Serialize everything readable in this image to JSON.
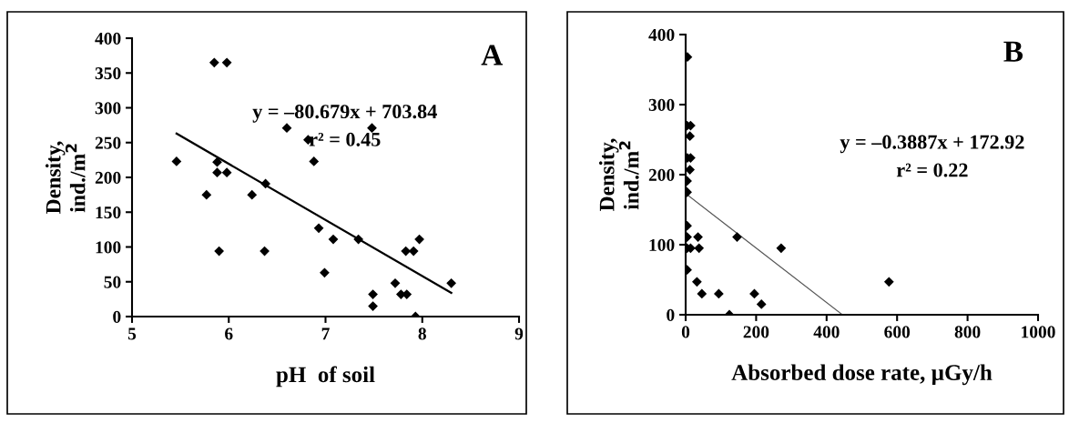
{
  "chart_data": [
    {
      "type": "scatter",
      "xlabel": "pH  of soil",
      "ylabel": "Density,\nind./m$^{2}$",
      "grid": false,
      "legend": false,
      "xlim": [
        5,
        9
      ],
      "ylim": [
        0,
        400
      ],
      "xticks": [
        5,
        6,
        7,
        8,
        9
      ],
      "yticks": [
        0,
        50,
        100,
        150,
        200,
        250,
        300,
        350,
        400
      ],
      "annotations": [
        "A",
        "y = –80.679x + 703.84",
        "r² = 0.45"
      ],
      "series": [
        {
          "color": "#000000",
          "marker": "diamond",
          "x": [
            5.46,
            5.85,
            5.98,
            5.88,
            5.88,
            5.98,
            5.77,
            5.9,
            6.24,
            6.38,
            6.37,
            6.6,
            6.82,
            6.88,
            6.93,
            6.99,
            7.08,
            7.34,
            7.48,
            7.49,
            7.49,
            7.72,
            7.78,
            7.84,
            7.83,
            7.91,
            7.97,
            7.93,
            8.3
          ],
          "values": [
            223,
            365,
            365,
            222,
            207,
            207,
            175,
            94,
            175,
            191,
            94,
            271,
            254,
            223,
            127,
            63,
            111,
            111,
            271,
            32,
            15,
            48,
            32,
            32,
            94,
            94,
            111,
            0,
            48
          ]
        },
        {
          "type": "line",
          "color": "#000000",
          "x": [
            5.46,
            8.3
          ],
          "values": [
            263,
            34
          ]
        }
      ]
    },
    {
      "type": "scatter",
      "xlabel": "Absorbed dose rate, µGy/h",
      "ylabel": "Density,\nind./m$^{2}$",
      "grid": false,
      "legend": false,
      "xlim": [
        0,
        1000
      ],
      "ylim": [
        0,
        400
      ],
      "xticks": [
        0,
        200,
        400,
        600,
        800,
        1000
      ],
      "yticks": [
        0,
        100,
        200,
        300,
        400
      ],
      "annotations": [
        "B",
        "y = –0.3887x + 172.92",
        "r² = 0.22"
      ],
      "series": [
        {
          "color": "#000000",
          "marker": "diamond",
          "x": [
            5,
            4,
            14,
            12,
            5,
            14,
            12,
            4,
            4,
            4,
            4,
            4,
            14,
            4,
            35,
            38,
            32,
            46,
            94,
            124,
            146,
            195,
            215,
            271,
            577
          ],
          "values": [
            368,
            270,
            270,
            255,
            224,
            224,
            207,
            191,
            175,
            127,
            111,
            95,
            95,
            64,
            111,
            95,
            47,
            30,
            30,
            0,
            111,
            30,
            15,
            95,
            47
          ]
        },
        {
          "type": "line",
          "color": "#555555",
          "x": [
            0,
            445
          ],
          "values": [
            173,
            0
          ]
        }
      ]
    }
  ]
}
